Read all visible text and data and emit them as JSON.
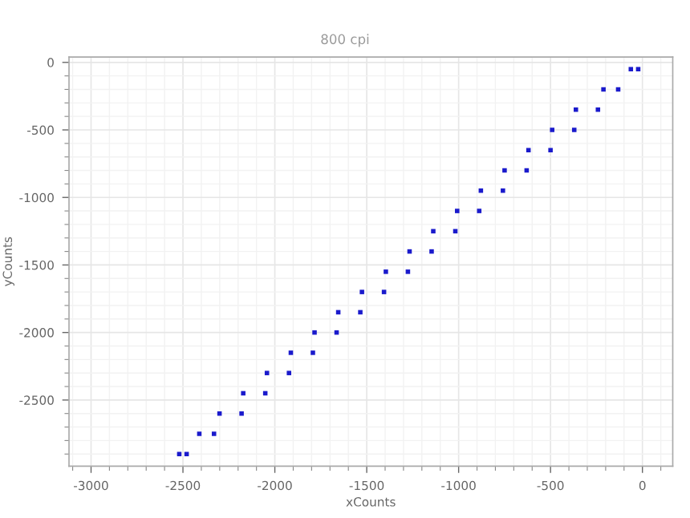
{
  "chart_data": {
    "type": "scatter",
    "subtitle": "800 cpi",
    "xlabel": "xCounts",
    "ylabel": "yCounts",
    "xlim": [
      -3120,
      165
    ],
    "ylim": [
      -2990,
      40
    ],
    "xticks": [
      -3000,
      -2500,
      -2000,
      -1500,
      -1000,
      -500,
      0
    ],
    "yticks": [
      -2500,
      -2000,
      -1500,
      -1000,
      -500,
      0
    ],
    "grid": true,
    "marker": "square",
    "series": [
      {
        "color": "#1a1acc",
        "x": [
          -2520,
          -2411,
          -2301,
          -2172,
          -2043,
          -1913,
          -1784,
          -1655,
          -1526,
          -1396,
          -1267,
          -1138,
          -1008,
          -879,
          -750,
          -620,
          -491,
          -362,
          -212,
          -63
        ],
        "values": [
          -2900,
          -2750,
          -2600,
          -2450,
          -2300,
          -2150,
          -2000,
          -1850,
          -1700,
          -1550,
          -1400,
          -1250,
          -1100,
          -950,
          -800,
          -650,
          -500,
          -350,
          -200,
          -50
        ]
      },
      {
        "color": "#1a1acc",
        "x": [
          -2480,
          -2331,
          -2181,
          -2052,
          -1923,
          -1793,
          -1664,
          -1535,
          -1406,
          -1276,
          -1147,
          -1018,
          -888,
          -759,
          -630,
          -500,
          -371,
          -242,
          -132,
          -23
        ],
        "values": [
          -2900,
          -2750,
          -2600,
          -2450,
          -2300,
          -2150,
          -2000,
          -1850,
          -1700,
          -1550,
          -1400,
          -1250,
          -1100,
          -950,
          -800,
          -650,
          -500,
          -350,
          -200,
          -50
        ]
      }
    ]
  }
}
